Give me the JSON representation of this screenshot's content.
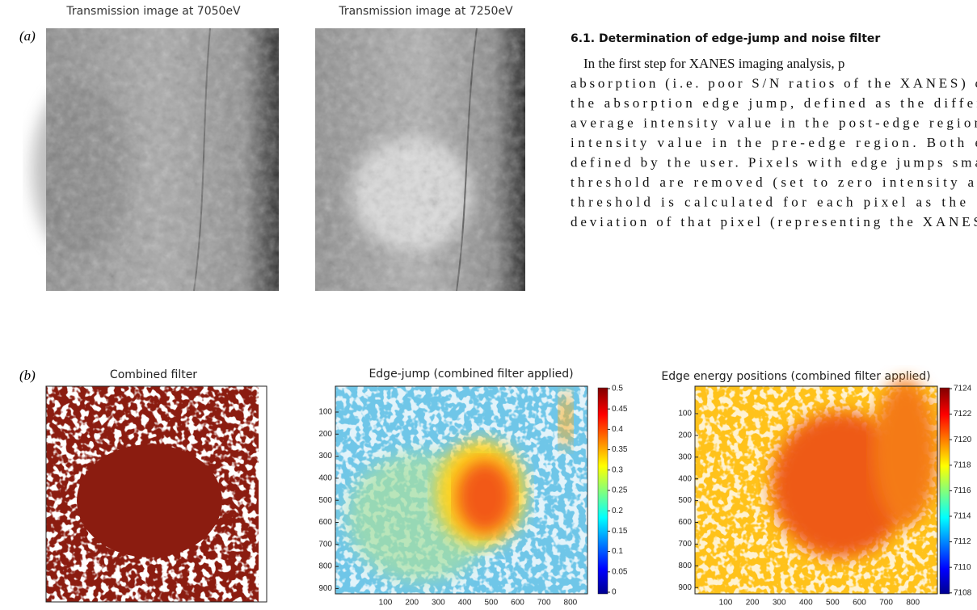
{
  "figure": {
    "panel_a": {
      "label": "(a)",
      "images": [
        {
          "title": "Transmission image at 7050eV"
        },
        {
          "title": "Transmission image at 7250eV"
        }
      ]
    },
    "panel_b": {
      "label": "(b)",
      "combined_filter": {
        "title": "Combined filter"
      },
      "edge_jump": {
        "title": "Edge-jump (combined filter applied)",
        "y_ticks": [
          "100",
          "200",
          "300",
          "400",
          "500",
          "600",
          "700",
          "800",
          "900"
        ],
        "x_ticks": [
          "100",
          "200",
          "300",
          "400",
          "500",
          "600",
          "700",
          "800"
        ],
        "colorbar_ticks": [
          "0.5",
          "0.45",
          "0.4",
          "0.35",
          "0.3",
          "0.25",
          "0.2",
          "0.15",
          "0.1",
          "0.05",
          "0"
        ]
      },
      "edge_energy": {
        "title": "Edge energy positions (combined filter applied)",
        "y_ticks": [
          "100",
          "200",
          "300",
          "400",
          "500",
          "600",
          "700",
          "800",
          "900"
        ],
        "x_ticks": [
          "100",
          "200",
          "300",
          "400",
          "500",
          "600",
          "700",
          "800"
        ],
        "colorbar_ticks": [
          "7124",
          "7122",
          "7120",
          "7118",
          "7116",
          "7114",
          "7112",
          "7110",
          "7108"
        ]
      }
    }
  },
  "section": {
    "heading": "6.1. Determination of edge-jump and noise filter",
    "lines": [
      "In the first step for XANES imaging analysis, p",
      "absorption (i.e. poor S/N ratios of the XANES) c",
      "the absorption edge jump, defined as the differ",
      "average intensity value in the post-edge region",
      "intensity value in the pre-edge region. Both e",
      "defined by the user. Pixels with edge jumps sma",
      "threshold are removed (set to zero intensity at",
      "threshold is calculated for each pixel as the",
      "deviation of that pixel (representing the XANES"
    ]
  }
}
